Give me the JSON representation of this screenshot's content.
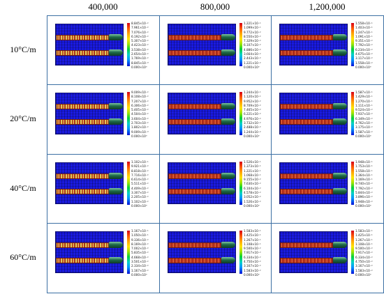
{
  "columns": [
    "400,000",
    "800,000",
    "1,200,000"
  ],
  "rows": [
    "10°C/m",
    "20°C/m",
    "40°C/m",
    "60°C/m"
  ],
  "panels": [
    [
      {
        "legend": [
          "8.845×10⁻²",
          "7.961×10⁻²",
          "7.076×10⁻²",
          "6.192×10⁻²",
          "5.307×10⁻²",
          "4.423×10⁻²",
          "3.538×10⁻²",
          "2.654×10⁻²",
          "1.769×10⁻²",
          "8.845×10⁻³",
          "0.000×10⁰"
        ],
        "hot": true
      },
      {
        "legend": [
          "1.221×10⁻¹",
          "1.099×10⁻¹",
          "9.772×10⁻²",
          "8.550×10⁻²",
          "7.329×10⁻²",
          "6.107×10⁻²",
          "4.886×10⁻²",
          "3.664×10⁻²",
          "2.443×10⁻²",
          "1.221×10⁻²",
          "0.000×10⁰"
        ],
        "hot": false
      },
      {
        "legend": [
          "1.558×10⁻¹",
          "1.403×10⁻¹",
          "1.247×10⁻¹",
          "1.091×10⁻¹",
          "9.351×10⁻²",
          "7.792×10⁻²",
          "6.234×10⁻²",
          "4.675×10⁻²",
          "3.117×10⁻²",
          "1.558×10⁻²",
          "0.000×10⁰"
        ],
        "hot": false
      }
    ],
    [
      {
        "legend": [
          "9.009×10⁻²",
          "8.108×10⁻²",
          "7.207×10⁻²",
          "6.306×10⁻²",
          "5.405×10⁻²",
          "4.504×10⁻²",
          "3.604×10⁻²",
          "2.703×10⁻²",
          "1.802×10⁻²",
          "9.009×10⁻³",
          "0.000×10⁰"
        ],
        "hot": true
      },
      {
        "legend": [
          "1.244×10⁻¹",
          "1.120×10⁻¹",
          "9.952×10⁻²",
          "8.709×10⁻²",
          "7.465×10⁻²",
          "6.221×10⁻²",
          "4.976×10⁻²",
          "3.732×10⁻²",
          "2.488×10⁻²",
          "1.244×10⁻²",
          "0.000×10⁰"
        ],
        "hot": false
      },
      {
        "legend": [
          "1.587×10⁻¹",
          "1.429×10⁻¹",
          "1.270×10⁻¹",
          "1.111×10⁻¹",
          "9.524×10⁻²",
          "7.937×10⁻²",
          "6.349×10⁻²",
          "4.762×10⁻²",
          "3.175×10⁻²",
          "1.587×10⁻²",
          "0.000×10⁰"
        ],
        "hot": false
      }
    ],
    [
      {
        "legend": [
          "1.102×10⁻¹",
          "9.921×10⁻²",
          "8.818×10⁻²",
          "7.716×10⁻²",
          "6.614×10⁻²",
          "5.511×10⁻²",
          "4.409×10⁻²",
          "3.307×10⁻²",
          "2.205×10⁻²",
          "1.102×10⁻²",
          "0.000×10⁰"
        ],
        "hot": true
      },
      {
        "legend": [
          "1.526×10⁻¹",
          "1.373×10⁻¹",
          "1.221×10⁻¹",
          "1.068×10⁻¹",
          "9.155×10⁻²",
          "7.630×10⁻²",
          "6.104×10⁻²",
          "4.578×10⁻²",
          "3.052×10⁻²",
          "1.526×10⁻²",
          "0.000×10⁰"
        ],
        "hot": false
      },
      {
        "legend": [
          "1.948×10⁻¹",
          "1.753×10⁻¹",
          "1.558×10⁻¹",
          "1.364×10⁻¹",
          "1.169×10⁻¹",
          "9.740×10⁻²",
          "7.792×10⁻²",
          "5.844×10⁻²",
          "3.896×10⁻²",
          "1.948×10⁻²",
          "0.000×10⁰"
        ],
        "hot": false
      }
    ],
    [
      {
        "legend": [
          "1.167×10⁻¹",
          "1.050×10⁻¹",
          "9.336×10⁻²",
          "8.169×10⁻²",
          "7.002×10⁻²",
          "5.835×10⁻²",
          "4.668×10⁻²",
          "3.501×10⁻²",
          "2.334×10⁻²",
          "1.167×10⁻²",
          "0.000×10⁰"
        ],
        "hot": true
      },
      {
        "legend": [
          "1.583×10⁻¹",
          "1.425×10⁻¹",
          "1.267×10⁻¹",
          "1.108×10⁻¹",
          "9.500×10⁻²",
          "7.917×10⁻²",
          "6.334×10⁻²",
          "4.750×10⁻²",
          "3.167×10⁻²",
          "1.583×10⁻²",
          "0.000×10⁰"
        ],
        "hot": false
      },
      {
        "legend": [
          "1.583×10⁻¹",
          "1.425×10⁻¹",
          "1.267×10⁻¹",
          "1.108×10⁻¹",
          "9.500×10⁻²",
          "7.917×10⁻²",
          "6.334×10⁻²",
          "4.750×10⁻²",
          "3.167×10⁻²",
          "1.583×10⁻²",
          "0.000×10⁰"
        ],
        "hot": false
      }
    ]
  ],
  "colors": {
    "grid_border": "#3b6fa3",
    "field_background": "#1a1ae0",
    "fracture_band": "#c0391f",
    "pipe": "#1e6b48"
  }
}
